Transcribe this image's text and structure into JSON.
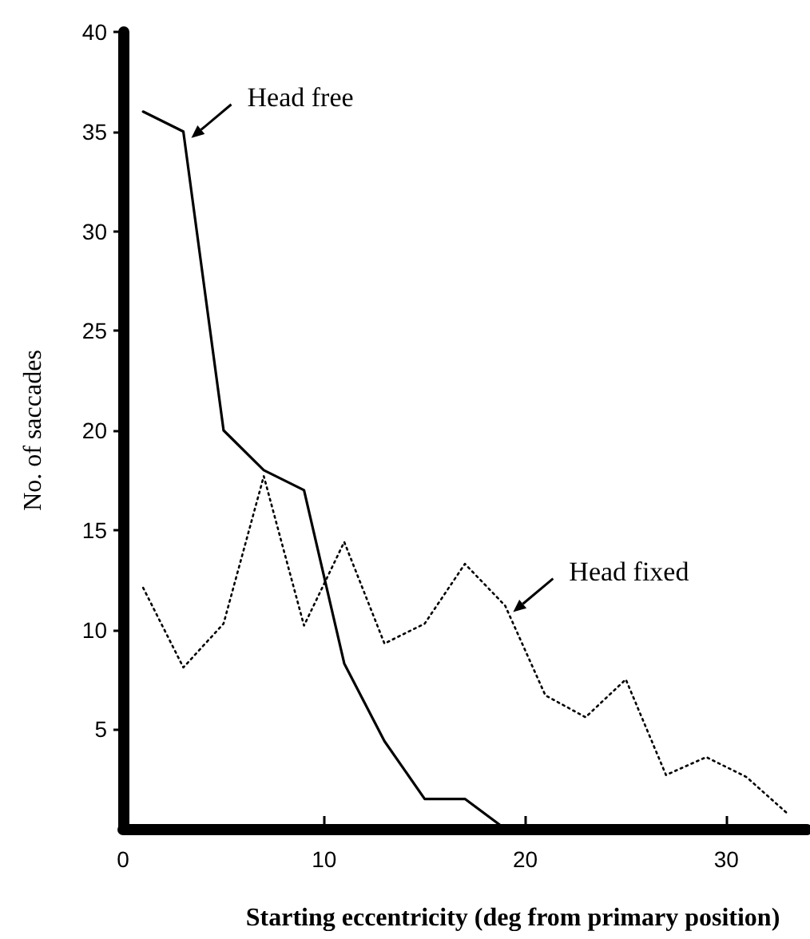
{
  "chart_data": {
    "type": "line",
    "xlabel": "Starting eccentricity (deg from primary position)",
    "ylabel": "No. of saccades",
    "xlim": [
      0,
      34
    ],
    "xticks": [
      0,
      10,
      20,
      30
    ],
    "ylim": [
      0,
      40
    ],
    "yticks": [
      5,
      10,
      15,
      20,
      25,
      30,
      35,
      40
    ],
    "grid": false,
    "marker": "none",
    "series": [
      {
        "color": "#000000",
        "line_style": "solid",
        "x": [
          1,
          3,
          5,
          7,
          9,
          11,
          13,
          15,
          17,
          19
        ],
        "values": [
          36,
          35,
          20,
          18,
          17,
          8.3,
          4.4,
          1.5,
          1.5,
          0
        ]
      },
      {
        "color": "#000000",
        "line_style": "dotted",
        "x": [
          1,
          3,
          5,
          7,
          9,
          11,
          13,
          15,
          17,
          19,
          21,
          23,
          25,
          27,
          29,
          31,
          33
        ],
        "values": [
          12.1,
          8.1,
          10.3,
          17.7,
          10.2,
          14.4,
          9.3,
          10.3,
          13.3,
          11.2,
          6.7,
          5.6,
          7.5,
          2.7,
          3.6,
          2.6,
          0.8
        ]
      }
    ],
    "annotations": [
      {
        "text": "Head free",
        "x": 3,
        "y": 35
      },
      {
        "text": "Head fixed",
        "x": 19,
        "y": 11.2
      }
    ]
  }
}
